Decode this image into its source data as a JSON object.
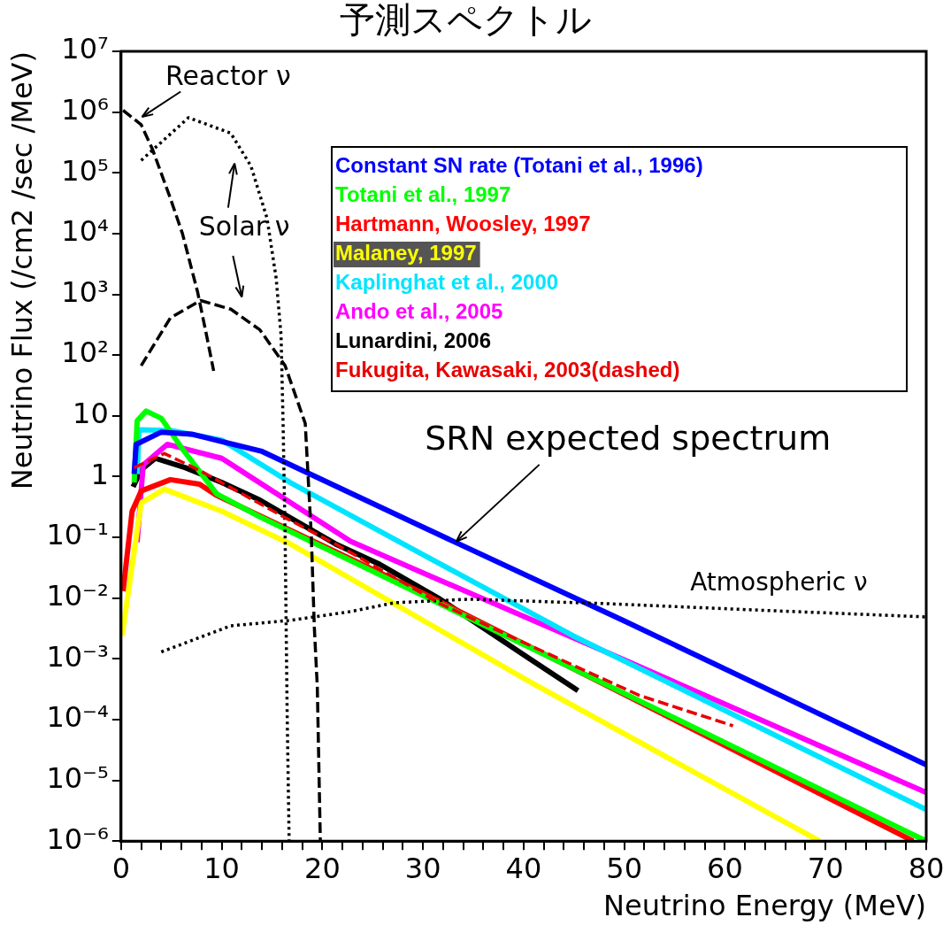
{
  "chart_data": {
    "type": "line",
    "title": "予測スペクトル",
    "xlabel": "Neutrino Energy (MeV)",
    "ylabel": "Neutrino Flux (/cm2 /sec /MeV)",
    "log": "y",
    "grid": false,
    "legend": "top right",
    "marker": "none",
    "xlim": [
      0,
      80
    ],
    "xticks": [
      0,
      {
        "value": 2,
        "label": null
      },
      {
        "value": 4,
        "label": null
      },
      {
        "value": 6,
        "label": null
      },
      {
        "value": 8,
        "label": null
      },
      10,
      {
        "value": 12,
        "label": null
      },
      {
        "value": 14,
        "label": null
      },
      {
        "value": 16,
        "label": null
      },
      {
        "value": 18,
        "label": null
      },
      20,
      {
        "value": 22,
        "label": null
      },
      {
        "value": 24,
        "label": null
      },
      {
        "value": 26,
        "label": null
      },
      {
        "value": 28,
        "label": null
      },
      30,
      {
        "value": 32,
        "label": null
      },
      {
        "value": 34,
        "label": null
      },
      {
        "value": 36,
        "label": null
      },
      {
        "value": 38,
        "label": null
      },
      40,
      {
        "value": 42,
        "label": null
      },
      {
        "value": 44,
        "label": null
      },
      {
        "value": 46,
        "label": null
      },
      {
        "value": 48,
        "label": null
      },
      50,
      {
        "value": 52,
        "label": null
      },
      {
        "value": 54,
        "label": null
      },
      {
        "value": 56,
        "label": null
      },
      {
        "value": 58,
        "label": null
      },
      60,
      {
        "value": 62,
        "label": null
      },
      {
        "value": 64,
        "label": null
      },
      {
        "value": 66,
        "label": null
      },
      {
        "value": 68,
        "label": null
      },
      70,
      {
        "value": 72,
        "label": null
      },
      {
        "value": 74,
        "label": null
      },
      {
        "value": 76,
        "label": null
      },
      {
        "value": 78,
        "label": null
      },
      80
    ],
    "ylim": [
      1e-06,
      10000000
    ],
    "yticks": [
      {
        "value": 1e-06,
        "label": "10⁻⁶"
      },
      {
        "value": 1e-05,
        "label": "10⁻⁵"
      },
      {
        "value": 0.0001,
        "label": "10⁻⁴"
      },
      {
        "value": 0.001,
        "label": "10⁻³"
      },
      {
        "value": 0.01,
        "label": "10⁻²"
      },
      {
        "value": 0.1,
        "label": "10⁻¹"
      },
      1,
      10,
      {
        "value": 100,
        "label": "10²"
      },
      {
        "value": 1000,
        "label": "10³"
      },
      {
        "value": 10000,
        "label": "10⁴"
      },
      {
        "value": 100000,
        "label": "10⁵"
      },
      {
        "value": 1000000,
        "label": "10⁶"
      },
      {
        "value": 10000000,
        "label": "10⁷"
      }
    ],
    "series": [
      {
        "name": "Constant SN rate (Totani et al., 1996)",
        "color": "#0000ff",
        "line_style": "solid",
        "x": [
          1.3,
          1.5,
          4,
          7,
          14,
          30,
          50,
          80
        ],
        "values": [
          1.1,
          3.4,
          5.4,
          5.0,
          2.6,
          0.147,
          0.0042,
          1.8e-05
        ]
      },
      {
        "name": "Totani et al., 1997",
        "color": "#00ff00",
        "line_style": "solid",
        "x": [
          1.3,
          1.6,
          2.5,
          4,
          6,
          9.5,
          13.5,
          30,
          50,
          80
        ],
        "values": [
          0.8,
          8.3,
          12,
          9.1,
          3.0,
          0.52,
          0.23,
          0.011,
          0.00027,
          1e-06
        ]
      },
      {
        "name": "Hartmann, Woosley, 1997",
        "color": "#ff0000",
        "line_style": "solid",
        "x": [
          0.2,
          1.1,
          2,
          4.9,
          7.8,
          9.4,
          30,
          50,
          78.7
        ],
        "values": [
          0.013,
          0.27,
          0.58,
          0.89,
          0.75,
          0.5,
          0.012,
          0.00026,
          1e-06
        ]
      },
      {
        "name": "Malaney, 1997",
        "color": "#ffff00",
        "line_style": "solid",
        "x": [
          0.1,
          2,
          4.3,
          10,
          16.8,
          40.6,
          69.4
        ],
        "values": [
          0.0024,
          0.37,
          0.62,
          0.27,
          0.078,
          0.00042,
          1e-06
        ]
      },
      {
        "name": "Kaplinghat et al., 2000",
        "color": "#00e5ff",
        "line_style": "solid",
        "x": [
          1.6,
          1.8,
          5,
          10,
          16.8,
          30,
          44.9,
          80
        ],
        "values": [
          1.1,
          5.9,
          5.7,
          4.0,
          0.8,
          0.052,
          0.0024,
          3.3e-06
        ]
      },
      {
        "name": "Ando et al., 2005",
        "color": "#ff00ff",
        "line_style": "solid",
        "x": [
          1.6,
          2.2,
          4.6,
          10,
          22.8,
          30,
          50,
          80
        ],
        "values": [
          0.083,
          1.56,
          3.4,
          2.0,
          0.086,
          0.026,
          0.00096,
          6.3e-06
        ]
      },
      {
        "name": "Lunardini, 2006",
        "color": "#000000",
        "line_style": "solid",
        "x": [
          1.2,
          2,
          3.4,
          6.4,
          10,
          13.8,
          16.8,
          21.3,
          25.7,
          31.7,
          40.6,
          45.4
        ],
        "values": [
          0.68,
          1.3,
          2.0,
          1.4,
          0.8,
          0.41,
          0.21,
          0.078,
          0.036,
          0.0096,
          0.001,
          0.0003
        ]
      },
      {
        "name": "Fukugita, Kawasaki, 2003(dashed)",
        "color": "#e80000",
        "line_style": "dashed",
        "x": [
          1.3,
          4.3,
          7.9,
          16.8,
          21.3,
          31.7,
          41.6,
          51.5,
          60.8
        ],
        "values": [
          1.4,
          2.4,
          1.24,
          0.19,
          0.078,
          0.0081,
          0.0014,
          0.00025,
          7.9e-05
        ]
      },
      {
        "color": "#000000",
        "line_style": "dashed",
        "x": [
          0.2,
          2,
          3.1,
          4.9,
          6.1,
          7.6,
          8.5,
          9.2
        ],
        "values": [
          1070000,
          620000,
          250000,
          38000,
          10000,
          1100,
          210,
          55
        ]
      },
      {
        "color": "#000000",
        "line_style": "dotted",
        "x": [
          2,
          6.7,
          10.9,
          12.9,
          14.5,
          15.4,
          15.9,
          16.1,
          16.3,
          16.5,
          16.7
        ],
        "values": [
          160000,
          810000,
          450000,
          130000,
          18000,
          1900,
          210,
          7.5,
          0.11,
          0.00014,
          1e-06
        ]
      },
      {
        "color": "#000000",
        "line_style": "dashed",
        "x": [
          2,
          4.9,
          7.9,
          10.9,
          13.8,
          16.3,
          18.3,
          18.9,
          19.2,
          19.5,
          19.8
        ],
        "values": [
          67,
          410,
          790,
          570,
          260,
          67,
          7.5,
          0.11,
          0.0034,
          0.00034,
          1e-06
        ]
      },
      {
        "color": "#000000",
        "line_style": "dotted",
        "x": [
          4,
          10.9,
          16.8,
          22.8,
          27.2,
          34.6,
          48.2,
          64.7,
          80
        ],
        "values": [
          0.0013,
          0.0035,
          0.0043,
          0.006,
          0.0084,
          0.0096,
          0.0081,
          0.0062,
          0.0049
        ]
      }
    ],
    "annotations": [
      "Reactor ν",
      "Solar ν",
      {
        "text": "SRN expected spectrum",
        "x": 33.3,
        "y": 0.085
      },
      "Atmospheric ν"
    ]
  }
}
